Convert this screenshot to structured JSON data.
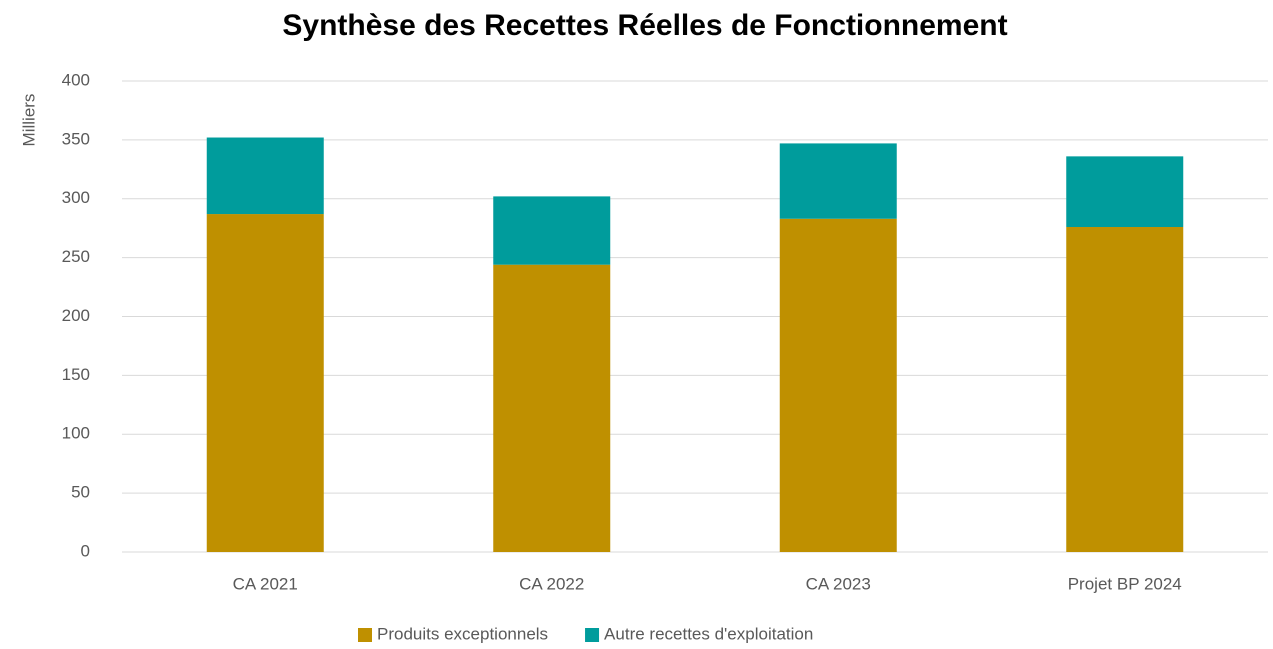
{
  "chart_data": {
    "type": "stacked_bar",
    "title": "Synthèse des Recettes Réelles de Fonctionnement",
    "y_label": "Milliers",
    "categories": [
      "CA 2021",
      "CA 2022",
      "CA 2023",
      "Projet BP 2024"
    ],
    "series": [
      {
        "name": "Produits exceptionnels",
        "color": "#bf9000",
        "values": [
          287,
          244,
          283,
          276
        ]
      },
      {
        "name": "Autre recettes d'exploitation",
        "color": "#009c9c",
        "values": [
          65,
          58,
          64,
          60
        ]
      }
    ],
    "ylim": [
      0,
      400
    ],
    "yticks": [
      0,
      50,
      100,
      150,
      200,
      250,
      300,
      350,
      400
    ],
    "grid": true,
    "legend": "bottom"
  }
}
